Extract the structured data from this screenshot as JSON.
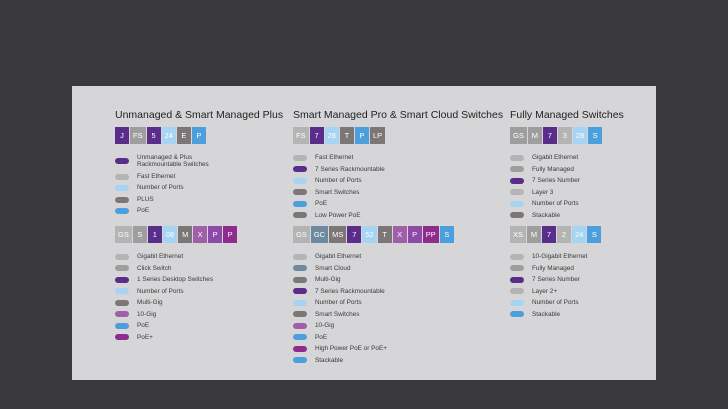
{
  "colors": {
    "purple_dark": "#5b2d8a",
    "purple": "#7a4d99",
    "grey_light": "#b4b4b4",
    "grey": "#9e9e9e",
    "grey_dark": "#7d7676",
    "blue_light": "#a6d4f2",
    "blue": "#4a9fdc",
    "magenta": "#8e2b8c",
    "orchid": "#a05fa8",
    "steel": "#6e8a9e"
  },
  "sections": [
    {
      "title": "Unmanaged & Smart Managed Plus",
      "blocks": [
        {
          "codes": [
            {
              "text": "J",
              "color": "#5b2d8a"
            },
            {
              "text": "FS",
              "color": "#9e9e9e"
            },
            {
              "text": "5",
              "color": "#5b2d8a"
            },
            {
              "text": "24",
              "color": "#a6d4f2"
            },
            {
              "text": "E",
              "color": "#7d7676"
            },
            {
              "text": "P",
              "color": "#4a9fdc"
            }
          ],
          "legend": [
            {
              "label": "Unmanaged & Plus\nRackmountable Switches",
              "color": "#5b2d8a"
            },
            {
              "label": "Fast Ethernet",
              "color": "#b4b4b4"
            },
            {
              "label": "Number of Ports",
              "color": "#a6d4f2"
            },
            {
              "label": "PLUS",
              "color": "#7d7676"
            },
            {
              "label": "PoE",
              "color": "#4a9fdc"
            }
          ]
        },
        {
          "codes": [
            {
              "text": "GS",
              "color": "#b4b4b4"
            },
            {
              "text": "S",
              "color": "#9e9e9e"
            },
            {
              "text": "1",
              "color": "#5b2d8a"
            },
            {
              "text": "08",
              "color": "#a6d4f2"
            },
            {
              "text": "M",
              "color": "#7d7676"
            },
            {
              "text": "X",
              "color": "#a05fa8"
            },
            {
              "text": "P",
              "color": "#8e4aa8"
            },
            {
              "text": "P",
              "color": "#8e2b8c"
            }
          ],
          "legend": [
            {
              "label": "Gigabit Ethernet",
              "color": "#b4b4b4"
            },
            {
              "label": "Click Switch",
              "color": "#9e9e9e"
            },
            {
              "label": "1 Series Desktop Switches",
              "color": "#5b2d8a"
            },
            {
              "label": "Number of Ports",
              "color": "#a6d4f2"
            },
            {
              "label": "Multi-Gig",
              "color": "#7d7676"
            },
            {
              "label": "10-Gig",
              "color": "#a05fa8"
            },
            {
              "label": "PoE",
              "color": "#4a9fdc"
            },
            {
              "label": "PoE+",
              "color": "#8e2b8c"
            }
          ]
        }
      ]
    },
    {
      "title": "Smart Managed Pro & Smart Cloud Switches",
      "blocks": [
        {
          "codes": [
            {
              "text": "FS",
              "color": "#b4b4b4"
            },
            {
              "text": "7",
              "color": "#5b2d8a"
            },
            {
              "text": "28",
              "color": "#a6d4f2"
            },
            {
              "text": "T",
              "color": "#7d7676"
            },
            {
              "text": "P",
              "color": "#4a9fdc"
            },
            {
              "text": "LP",
              "color": "#7d7676"
            }
          ],
          "legend": [
            {
              "label": "Fast Ethernet",
              "color": "#b4b4b4"
            },
            {
              "label": "7 Series Rackmountable",
              "color": "#5b2d8a"
            },
            {
              "label": "Number of Ports",
              "color": "#a6d4f2"
            },
            {
              "label": "Smart Switches",
              "color": "#7d7676"
            },
            {
              "label": "PoE",
              "color": "#4a9fdc"
            },
            {
              "label": "Low Power PoE",
              "color": "#7d7676"
            }
          ]
        },
        {
          "codes": [
            {
              "text": "GS",
              "color": "#b4b4b4"
            },
            {
              "text": "GC",
              "color": "#6e8a9e"
            },
            {
              "text": "MS",
              "color": "#7d7676"
            },
            {
              "text": "7",
              "color": "#5b2d8a"
            },
            {
              "text": "52",
              "color": "#a6d4f2"
            },
            {
              "text": "T",
              "color": "#7d7676"
            },
            {
              "text": "X",
              "color": "#a05fa8"
            },
            {
              "text": "P",
              "color": "#8e4aa8"
            },
            {
              "text": "PP",
              "color": "#8e2b8c"
            },
            {
              "text": "S",
              "color": "#4a9fdc"
            }
          ],
          "legend": [
            {
              "label": "Gigabit Ethernet",
              "color": "#b4b4b4"
            },
            {
              "label": "Smart Cloud",
              "color": "#6e8a9e"
            },
            {
              "label": "Multi-Gig",
              "color": "#7d7676"
            },
            {
              "label": "7 Series Rackmountable",
              "color": "#5b2d8a"
            },
            {
              "label": "Number of Ports",
              "color": "#a6d4f2"
            },
            {
              "label": "Smart Switches",
              "color": "#7d7676"
            },
            {
              "label": "10-Gig",
              "color": "#a05fa8"
            },
            {
              "label": "PoE",
              "color": "#4a9fdc"
            },
            {
              "label": "High Power PoE or PoE+",
              "color": "#8e2b8c"
            },
            {
              "label": "Stackable",
              "color": "#4a9fdc"
            }
          ]
        }
      ]
    },
    {
      "title": "Fully Managed Switches",
      "blocks": [
        {
          "codes": [
            {
              "text": "GS",
              "color": "#9e9e9e"
            },
            {
              "text": "M",
              "color": "#9e9e9e"
            },
            {
              "text": "7",
              "color": "#5b2d8a"
            },
            {
              "text": "3",
              "color": "#b4b4b4"
            },
            {
              "text": "28",
              "color": "#a6d4f2"
            },
            {
              "text": "S",
              "color": "#4a9fdc"
            }
          ],
          "legend": [
            {
              "label": "Gigabit Ethernet",
              "color": "#b4b4b4"
            },
            {
              "label": "Fully Managed",
              "color": "#9e9e9e"
            },
            {
              "label": "7 Series Number",
              "color": "#5b2d8a"
            },
            {
              "label": "Layer 3",
              "color": "#b4b4b4"
            },
            {
              "label": "Number of Ports",
              "color": "#a6d4f2"
            },
            {
              "label": "Stackable",
              "color": "#7d7676"
            }
          ]
        },
        {
          "codes": [
            {
              "text": "XS",
              "color": "#b4b4b4"
            },
            {
              "text": "M",
              "color": "#9e9e9e"
            },
            {
              "text": "7",
              "color": "#5b2d8a"
            },
            {
              "text": "2",
              "color": "#b4b4b4"
            },
            {
              "text": "24",
              "color": "#a6d4f2"
            },
            {
              "text": "S",
              "color": "#4a9fdc"
            }
          ],
          "legend": [
            {
              "label": "10-Gigabit Ethernet",
              "color": "#b4b4b4"
            },
            {
              "label": "Fully Managed",
              "color": "#9e9e9e"
            },
            {
              "label": "7 Series Number",
              "color": "#5b2d8a"
            },
            {
              "label": "Layer 2+",
              "color": "#b4b4b4"
            },
            {
              "label": "Number of Ports",
              "color": "#a6d4f2"
            },
            {
              "label": "Stackable",
              "color": "#4a9fdc"
            }
          ]
        }
      ]
    }
  ]
}
